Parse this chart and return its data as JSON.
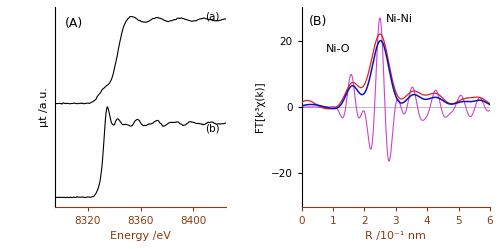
{
  "panel_A": {
    "label": "(A)",
    "xlabel": "Energy /eV",
    "ylabel": "μt /a.u.",
    "xlim": [
      8295,
      8425
    ],
    "xticks": [
      8320,
      8360,
      8400
    ],
    "curve_a_label": "(a)",
    "curve_b_label": "(b)"
  },
  "panel_B": {
    "label": "(B)",
    "xlabel": "R /10⁻¹ nm",
    "ylabel": "FT[k³χ(k)]",
    "xlim": [
      0,
      6
    ],
    "ylim": [
      -30,
      30
    ],
    "xticks": [
      0,
      1,
      2,
      3,
      4,
      5,
      6
    ],
    "yticks": [
      -20,
      0,
      20
    ],
    "annotation_NiO": "Ni-O",
    "annotation_NiNi": "Ni-Ni",
    "color_red": "#dd2222",
    "color_blue": "#1111bb",
    "color_magenta": "#cc44cc"
  },
  "figure_bgcolor": "#ffffff"
}
